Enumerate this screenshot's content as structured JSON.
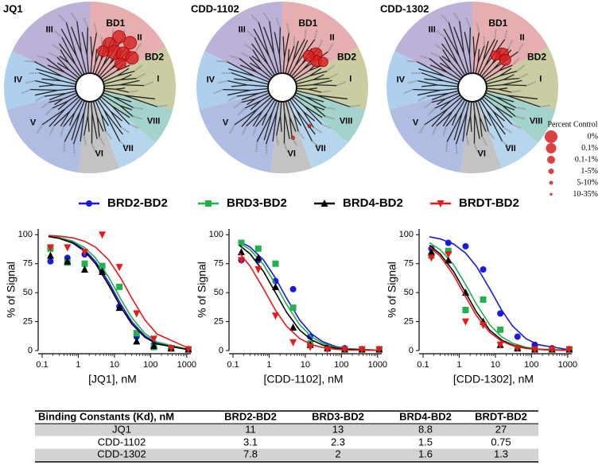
{
  "wheels": {
    "titles": [
      "JQ1",
      "CDD-1102",
      "CDD-1302"
    ],
    "sectors": [
      {
        "label": "II",
        "color": "#e6aeb0"
      },
      {
        "label": "I",
        "color": "#cccca2"
      },
      {
        "label": "VIII",
        "color": "#a3d3cb"
      },
      {
        "label": "VII",
        "color": "#b7d6ee"
      },
      {
        "label": "VI",
        "color": "#c3c3c3"
      },
      {
        "label": "V",
        "color": "#b0bde2"
      },
      {
        "label": "IV",
        "color": "#aed0ee"
      },
      {
        "label": "III",
        "color": "#bcb2d8"
      }
    ],
    "subdomains": [
      "BD1",
      "BD2"
    ],
    "legend_title": "Percent Control",
    "legend_labels": [
      "0%",
      "0.1%",
      "0.1-1%",
      "1-5%",
      "5-10%",
      "10-35%"
    ]
  },
  "legend": [
    {
      "name": "BRD2-BD2",
      "color": "#1a1adb",
      "marker": "circle"
    },
    {
      "name": "BRD3-BD2",
      "color": "#22b14c",
      "marker": "square"
    },
    {
      "name": "BRD4-BD2",
      "color": "#000000",
      "marker": "triangle-up"
    },
    {
      "name": "BRDT-BD2",
      "color": "#e41a1c",
      "marker": "triangle-down"
    }
  ],
  "chart_data": [
    {
      "type": "scatter",
      "xlabel": "[JQ1], nM",
      "ylabel": "% of Signal",
      "log_x": true,
      "xlim": [
        0.1,
        1300
      ],
      "ylim": [
        0,
        105
      ],
      "xticks": [
        0.1,
        1,
        10,
        100,
        1000
      ],
      "yticks": [
        0,
        25,
        50,
        75,
        100
      ],
      "x": [
        0.17,
        0.5,
        1.5,
        4.6,
        13.7,
        41,
        123,
        370,
        1111
      ],
      "fit_x": [
        0.15,
        0.3,
        0.7,
        1.5,
        3,
        7,
        15,
        30,
        70,
        150,
        1100
      ],
      "series": [
        {
          "values": [
            77,
            80,
            83,
            68,
            38,
            12,
            5,
            2,
            1
          ],
          "fit": [
            98.5,
            97.1,
            93.5,
            87.0,
            76.9,
            58.8,
            40,
            25,
            12.5,
            6.25,
            0.9
          ]
        },
        {
          "values": [
            88,
            76,
            75,
            73,
            55,
            15,
            3,
            2,
            1
          ],
          "fit": [
            98.8,
            97.6,
            94.5,
            88.9,
            80,
            63.2,
            44.4,
            28.6,
            14.6,
            7.4,
            1.1
          ]
        },
        {
          "values": [
            82,
            77,
            70,
            68,
            37,
            8,
            4,
            2,
            1
          ],
          "fit": [
            98.4,
            96.8,
            92.8,
            85.7,
            75,
            56.3,
            37.5,
            23.1,
            11.4,
            5.7,
            0.8
          ]
        },
        {
          "values": [
            89,
            89,
            85,
            100,
            72,
            32,
            10,
            2,
            1
          ],
          "fit": [
            99.4,
            98.8,
            97.3,
            94.3,
            89.3,
            78.1,
            62.5,
            45.5,
            26.3,
            14.3,
            2.2
          ]
        }
      ]
    },
    {
      "type": "scatter",
      "xlabel": "[CDD-1102], nM",
      "ylabel": "% of Signal",
      "log_x": true,
      "xlim": [
        0.1,
        1300
      ],
      "ylim": [
        0,
        105
      ],
      "xticks": [
        0.1,
        1,
        10,
        100,
        1000
      ],
      "yticks": [
        0,
        25,
        50,
        75,
        100
      ],
      "x": [
        0.17,
        0.5,
        1.5,
        4.6,
        13.7,
        41,
        123,
        370,
        1111
      ],
      "fit_x": [
        0.15,
        0.3,
        0.7,
        1.5,
        3,
        7,
        15,
        30,
        70,
        150,
        1100
      ],
      "series": [
        {
          "values": [
            78,
            78,
            60,
            53,
            12,
            3,
            2,
            1,
            1
          ],
          "fit": [
            94.3,
            89.3,
            78.1,
            62.5,
            45.5,
            26.3,
            14.3,
            7.7,
            3.4,
            1.6,
            0.2
          ]
        },
        {
          "values": [
            93,
            88,
            75,
            37,
            6,
            2,
            1,
            1,
            1
          ],
          "fit": [
            93.0,
            87.0,
            74.1,
            57.1,
            40,
            22.2,
            11.8,
            6.3,
            2.8,
            1.3,
            0.2
          ]
        },
        {
          "values": [
            85,
            80,
            55,
            20,
            5,
            2,
            1,
            1,
            1
          ],
          "fit": [
            90.9,
            83.3,
            68.2,
            50,
            33.3,
            17.6,
            9.1,
            4.8,
            2.1,
            1.0,
            0.1
          ]
        },
        {
          "values": [
            78,
            70,
            30,
            7,
            3,
            1,
            1,
            1,
            1
          ],
          "fit": [
            84.2,
            72.7,
            53.3,
            34.8,
            21.1,
            10.3,
            5.1,
            2.6,
            1.1,
            0.5,
            0.1
          ]
        }
      ]
    },
    {
      "type": "scatter",
      "xlabel": "[CDD-1302], nM",
      "ylabel": "% of Signal",
      "log_x": true,
      "xlim": [
        0.1,
        1300
      ],
      "ylim": [
        0,
        105
      ],
      "xticks": [
        0.1,
        1,
        10,
        100,
        1000
      ],
      "yticks": [
        0,
        25,
        50,
        75,
        100
      ],
      "x": [
        0.17,
        0.5,
        1.5,
        4.6,
        13.7,
        41,
        123,
        370,
        1111
      ],
      "fit_x": [
        0.15,
        0.3,
        0.7,
        1.5,
        3,
        7,
        15,
        30,
        70,
        150,
        1100
      ],
      "series": [
        {
          "values": [
            88,
            93,
            90,
            70,
            32,
            12,
            5,
            2,
            1
          ],
          "fit": [
            98.2,
            96.4,
            92.0,
            84.2,
            72.7,
            53.3,
            34.8,
            21.1,
            10.3,
            5.1,
            0.7
          ]
        },
        {
          "values": [
            82,
            86,
            35,
            44,
            18,
            2,
            1,
            1,
            1
          ],
          "fit": [
            93.0,
            87.0,
            74.1,
            57.1,
            40,
            22.2,
            11.8,
            6.3,
            2.8,
            1.3,
            0.2
          ]
        },
        {
          "values": [
            85,
            78,
            50,
            25,
            5,
            2,
            1,
            1,
            1
          ],
          "fit": [
            90.9,
            83.3,
            68.2,
            50,
            33.3,
            17.6,
            9.1,
            4.8,
            2.1,
            1.0,
            0.1
          ]
        },
        {
          "values": [
            80,
            83,
            25,
            22,
            5,
            2,
            1,
            1,
            1
          ],
          "fit": [
            89.7,
            81.3,
            65.0,
            46.4,
            30.2,
            15.7,
            8.0,
            4.2,
            1.8,
            0.9,
            0.1
          ]
        }
      ]
    }
  ],
  "table": {
    "header": [
      "Binding Constants (Kd), nM",
      "BRD2-BD2",
      "BRD3-BD2",
      "BRD4-BD2",
      "BRDT-BD2"
    ],
    "rows": [
      [
        "JQ1",
        11,
        13,
        8.8,
        27
      ],
      [
        "CDD-1102",
        3.1,
        2.3,
        1.5,
        0.75
      ],
      [
        "CDD-1302",
        7.8,
        2,
        1.6,
        1.3
      ]
    ]
  }
}
